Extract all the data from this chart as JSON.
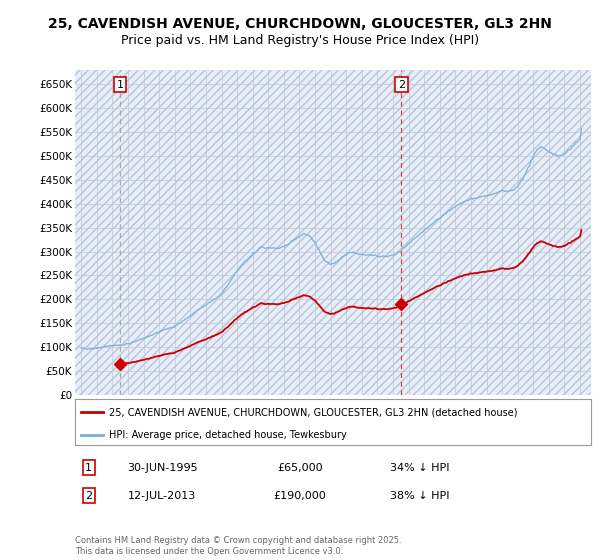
{
  "title": "25, CAVENDISH AVENUE, CHURCHDOWN, GLOUCESTER, GL3 2HN",
  "subtitle": "Price paid vs. HM Land Registry's House Price Index (HPI)",
  "title_fontsize": 10,
  "subtitle_fontsize": 9,
  "background_color": "#ffffff",
  "plot_bg_color": "#e8eef8",
  "grid_color": "#c0c8d8",
  "ylabel_values": [
    "£0",
    "£50K",
    "£100K",
    "£150K",
    "£200K",
    "£250K",
    "£300K",
    "£350K",
    "£400K",
    "£450K",
    "£500K",
    "£550K",
    "£600K",
    "£650K"
  ],
  "yticks": [
    0,
    50000,
    100000,
    150000,
    200000,
    250000,
    300000,
    350000,
    400000,
    450000,
    500000,
    550000,
    600000,
    650000
  ],
  "ylim": [
    0,
    680000
  ],
  "xlim_start": 1992.6,
  "xlim_end": 2025.7,
  "xticks": [
    1993,
    1994,
    1995,
    1996,
    1997,
    1998,
    1999,
    2000,
    2001,
    2002,
    2003,
    2004,
    2005,
    2006,
    2007,
    2008,
    2009,
    2010,
    2011,
    2012,
    2013,
    2014,
    2015,
    2016,
    2017,
    2018,
    2019,
    2020,
    2021,
    2022,
    2023,
    2024,
    2025
  ],
  "sale1_x": 1995.49,
  "sale1_y": 65000,
  "sale1_label": "1",
  "sale2_x": 2013.53,
  "sale2_y": 190000,
  "sale2_label": "2",
  "sale_color": "#cc0000",
  "hpi_color": "#7ab0d4",
  "dashed_line1_color": "#aaaaaa",
  "dashed_line2_color": "#dd4444",
  "legend_label_1": "25, CAVENDISH AVENUE, CHURCHDOWN, GLOUCESTER, GL3 2HN (detached house)",
  "legend_label_2": "HPI: Average price, detached house, Tewkesbury",
  "info_1_label": "1",
  "info_1_date": "30-JUN-1995",
  "info_1_price": "£65,000",
  "info_1_hpi": "34% ↓ HPI",
  "info_2_label": "2",
  "info_2_date": "12-JUL-2013",
  "info_2_price": "£190,000",
  "info_2_hpi": "38% ↓ HPI",
  "copyright_text": "Contains HM Land Registry data © Crown copyright and database right 2025.\nThis data is licensed under the Open Government Licence v3.0."
}
